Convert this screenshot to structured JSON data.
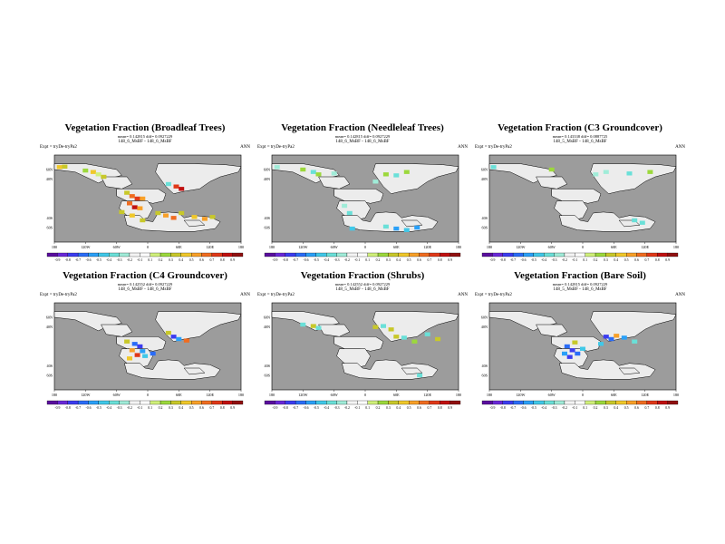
{
  "colorbar": {
    "colors": [
      "#5a0e9e",
      "#6a28d8",
      "#3c3cf0",
      "#2a6cf8",
      "#2aa0f8",
      "#40c8e8",
      "#6ae0d8",
      "#a0ecd8",
      "#f4f4f4",
      "#ffffff",
      "#d0f07a",
      "#9cd83c",
      "#c8c82a",
      "#f0c82a",
      "#f8a028",
      "#f06c20",
      "#e03818",
      "#c01010",
      "#901010"
    ],
    "ticks": [
      "-0.9",
      "-0.8",
      "-0.7",
      "-0.6",
      "-0.5",
      "-0.4",
      "-0.3",
      "-0.2",
      "-0.1",
      "0.1",
      "0.2",
      "0.3",
      "0.4",
      "0.5",
      "0.6",
      "0.7",
      "0.8",
      "0.9"
    ]
  },
  "map_colors": {
    "ocean": "#9c9c9c",
    "land": "#ececec",
    "coast": "#000000"
  },
  "lon_labels": [
    "180",
    "120W",
    "60W",
    "0",
    "60E",
    "120E",
    "180"
  ],
  "lat_labels": [
    "60N",
    "40N",
    "40S",
    "60S"
  ],
  "panels": [
    {
      "title": "Vegetation Fraction (Broadleaf Trees)",
      "stats": "mean= 0.142815 diff= 0.0927229",
      "subtitle": "148_6_MsBF - 148_6_MsBF",
      "expt": "Expt = tryDe-tryPa2",
      "period": "ANN",
      "chart_data": {
        "type": "heatmap",
        "variable": "Vegetation Fraction (Broadleaf Trees)",
        "x_range": [
          -180,
          180
        ],
        "y_range": [
          -90,
          90
        ],
        "cells": [
          {
            "lon": -170,
            "lat": 65,
            "v": 0.45
          },
          {
            "lon": -160,
            "lat": 66,
            "v": 0.3
          },
          {
            "lon": -120,
            "lat": 58,
            "v": 0.25
          },
          {
            "lon": -105,
            "lat": 55,
            "v": 0.4
          },
          {
            "lon": -95,
            "lat": 50,
            "v": 0.15
          },
          {
            "lon": -85,
            "lat": 45,
            "v": 0.3
          },
          {
            "lon": -40,
            "lat": 12,
            "v": 0.35
          },
          {
            "lon": -30,
            "lat": 5,
            "v": 0.6
          },
          {
            "lon": -20,
            "lat": 0,
            "v": 0.7
          },
          {
            "lon": -10,
            "lat": 0,
            "v": 0.55
          },
          {
            "lon": -35,
            "lat": -10,
            "v": 0.65
          },
          {
            "lon": -25,
            "lat": -18,
            "v": 0.8
          },
          {
            "lon": -15,
            "lat": -20,
            "v": 0.5
          },
          {
            "lon": -50,
            "lat": -28,
            "v": 0.35
          },
          {
            "lon": -30,
            "lat": -35,
            "v": 0.45
          },
          {
            "lon": -10,
            "lat": -45,
            "v": 0.3
          },
          {
            "lon": 20,
            "lat": -30,
            "v": 0.35
          },
          {
            "lon": 35,
            "lat": -35,
            "v": 0.5
          },
          {
            "lon": 50,
            "lat": -40,
            "v": 0.6
          },
          {
            "lon": 65,
            "lat": -30,
            "v": 0.3
          },
          {
            "lon": 90,
            "lat": -38,
            "v": 0.4
          },
          {
            "lon": 110,
            "lat": -42,
            "v": 0.55
          },
          {
            "lon": 125,
            "lat": -38,
            "v": 0.3
          },
          {
            "lon": 40,
            "lat": 30,
            "v": -0.3
          },
          {
            "lon": 55,
            "lat": 25,
            "v": 0.7
          },
          {
            "lon": 65,
            "lat": 20,
            "v": 0.85
          }
        ]
      }
    },
    {
      "title": "Vegetation Fraction (Needleleaf Trees)",
      "stats": "mean= 0.142815 diff= 0.0927229",
      "subtitle": "148_6_MsBF - 148_6_MsBF",
      "expt": "Expt = tryDe-tryPa2",
      "period": "ANN",
      "chart_data": {
        "type": "heatmap",
        "variable": "Vegetation Fraction (Needleleaf Trees)",
        "x_range": [
          -180,
          180
        ],
        "y_range": [
          -90,
          90
        ],
        "cells": [
          {
            "lon": -170,
            "lat": 65,
            "v": -0.2
          },
          {
            "lon": -120,
            "lat": 60,
            "v": 0.2
          },
          {
            "lon": -100,
            "lat": 55,
            "v": -0.3
          },
          {
            "lon": -90,
            "lat": 50,
            "v": 0.2
          },
          {
            "lon": -60,
            "lat": 52,
            "v": -0.2
          },
          {
            "lon": 40,
            "lat": 50,
            "v": 0.25
          },
          {
            "lon": 60,
            "lat": 48,
            "v": -0.25
          },
          {
            "lon": 80,
            "lat": 55,
            "v": 0.2
          },
          {
            "lon": 20,
            "lat": 35,
            "v": -0.2
          },
          {
            "lon": -40,
            "lat": -15,
            "v": -0.2
          },
          {
            "lon": -30,
            "lat": -30,
            "v": -0.3
          },
          {
            "lon": -25,
            "lat": -62,
            "v": -0.4
          },
          {
            "lon": 40,
            "lat": -58,
            "v": -0.3
          },
          {
            "lon": 60,
            "lat": -62,
            "v": -0.5
          },
          {
            "lon": 80,
            "lat": -65,
            "v": -0.4
          },
          {
            "lon": 100,
            "lat": -60,
            "v": -0.45
          }
        ]
      }
    },
    {
      "title": "Vegetation Fraction (C3 Groundcover)",
      "stats": "mean= 0.143338 diff= 0.0887725",
      "subtitle": "148_5_MsBF - 148_6_MsBF",
      "expt": "Expt = tryDe-tryPa2",
      "period": "ANN",
      "chart_data": {
        "type": "heatmap",
        "variable": "Vegetation Fraction (C3 Groundcover)",
        "x_range": [
          -180,
          180
        ],
        "y_range": [
          -90,
          90
        ],
        "cells": [
          {
            "lon": -172,
            "lat": 65,
            "v": -0.3
          },
          {
            "lon": -60,
            "lat": 60,
            "v": 0.2
          },
          {
            "lon": 25,
            "lat": 50,
            "v": -0.2
          },
          {
            "lon": 45,
            "lat": 55,
            "v": -0.2
          },
          {
            "lon": 90,
            "lat": 52,
            "v": -0.25
          },
          {
            "lon": 130,
            "lat": 55,
            "v": 0.2
          },
          {
            "lon": 100,
            "lat": -45,
            "v": -0.3
          },
          {
            "lon": 115,
            "lat": -50,
            "v": -0.25
          }
        ]
      }
    },
    {
      "title": "Vegetation Fraction (C4 Groundcover)",
      "stats": "mean= 0.142552 diff= 0.0927229",
      "subtitle": "148_6_MsBF - 148_6_MsBF",
      "expt": "Expt = tryDe-tryPa2",
      "period": "ANN",
      "chart_data": {
        "type": "heatmap",
        "variable": "Vegetation Fraction (C4 Groundcover)",
        "x_range": [
          -180,
          180
        ],
        "y_range": [
          -90,
          90
        ],
        "cells": [
          {
            "lon": -40,
            "lat": 10,
            "v": 0.3
          },
          {
            "lon": -25,
            "lat": 5,
            "v": -0.6
          },
          {
            "lon": -15,
            "lat": 0,
            "v": -0.7
          },
          {
            "lon": -30,
            "lat": -8,
            "v": 0.5
          },
          {
            "lon": -10,
            "lat": -10,
            "v": -0.5
          },
          {
            "lon": -20,
            "lat": -18,
            "v": 0.7
          },
          {
            "lon": -5,
            "lat": -20,
            "v": -0.4
          },
          {
            "lon": 10,
            "lat": -15,
            "v": -0.6
          },
          {
            "lon": -35,
            "lat": -25,
            "v": 0.4
          },
          {
            "lon": 50,
            "lat": 20,
            "v": -0.7
          },
          {
            "lon": 60,
            "lat": 15,
            "v": -0.5
          },
          {
            "lon": 75,
            "lat": 12,
            "v": 0.6
          },
          {
            "lon": 40,
            "lat": 28,
            "v": 0.3
          }
        ]
      }
    },
    {
      "title": "Vegetation Fraction (Shrubs)",
      "stats": "mean= 0.142552 diff= 0.0927229",
      "subtitle": "148_5_MsBF - 148_6_MsBF",
      "expt": "Expt = tryDe-tryPa2",
      "period": "ANN",
      "chart_data": {
        "type": "heatmap",
        "variable": "Vegetation Fraction (Shrubs)",
        "x_range": [
          -180,
          180
        ],
        "y_range": [
          -90,
          90
        ],
        "cells": [
          {
            "lon": -120,
            "lat": 45,
            "v": -0.3
          },
          {
            "lon": -100,
            "lat": 42,
            "v": 0.3
          },
          {
            "lon": -90,
            "lat": 38,
            "v": -0.25
          },
          {
            "lon": 20,
            "lat": 40,
            "v": 0.3
          },
          {
            "lon": 35,
            "lat": 42,
            "v": -0.3
          },
          {
            "lon": 50,
            "lat": 35,
            "v": 0.35
          },
          {
            "lon": 60,
            "lat": 20,
            "v": 0.3
          },
          {
            "lon": 75,
            "lat": 18,
            "v": -0.3
          },
          {
            "lon": 95,
            "lat": 10,
            "v": 0.25
          },
          {
            "lon": 120,
            "lat": 25,
            "v": -0.25
          },
          {
            "lon": 140,
            "lat": 15,
            "v": 0.3
          },
          {
            "lon": 105,
            "lat": -60,
            "v": -0.3
          }
        ]
      }
    },
    {
      "title": "Vegetation Fraction (Bare Soil)",
      "stats": "mean= 0.142815 diff= 0.0927229",
      "subtitle": "148_5_MsBF - 148_6_MsBF",
      "expt": "Expt = tryDe-tryPa2",
      "period": "ANN",
      "chart_data": {
        "type": "heatmap",
        "variable": "Vegetation Fraction (Bare Soil)",
        "x_range": [
          -180,
          180
        ],
        "y_range": [
          -90,
          90
        ],
        "cells": [
          {
            "lon": -30,
            "lat": 0,
            "v": -0.6
          },
          {
            "lon": -20,
            "lat": -8,
            "v": -0.7
          },
          {
            "lon": -10,
            "lat": -15,
            "v": -0.55
          },
          {
            "lon": -25,
            "lat": -22,
            "v": -0.65
          },
          {
            "lon": -35,
            "lat": -15,
            "v": -0.5
          },
          {
            "lon": 0,
            "lat": -5,
            "v": -0.4
          },
          {
            "lon": -15,
            "lat": 8,
            "v": 0.3
          },
          {
            "lon": 45,
            "lat": 20,
            "v": -0.7
          },
          {
            "lon": 55,
            "lat": 15,
            "v": -0.6
          },
          {
            "lon": 65,
            "lat": 22,
            "v": 0.55
          },
          {
            "lon": 80,
            "lat": 18,
            "v": -0.5
          },
          {
            "lon": 100,
            "lat": 10,
            "v": -0.3
          },
          {
            "lon": 35,
            "lat": 5,
            "v": -0.4
          }
        ]
      }
    }
  ]
}
